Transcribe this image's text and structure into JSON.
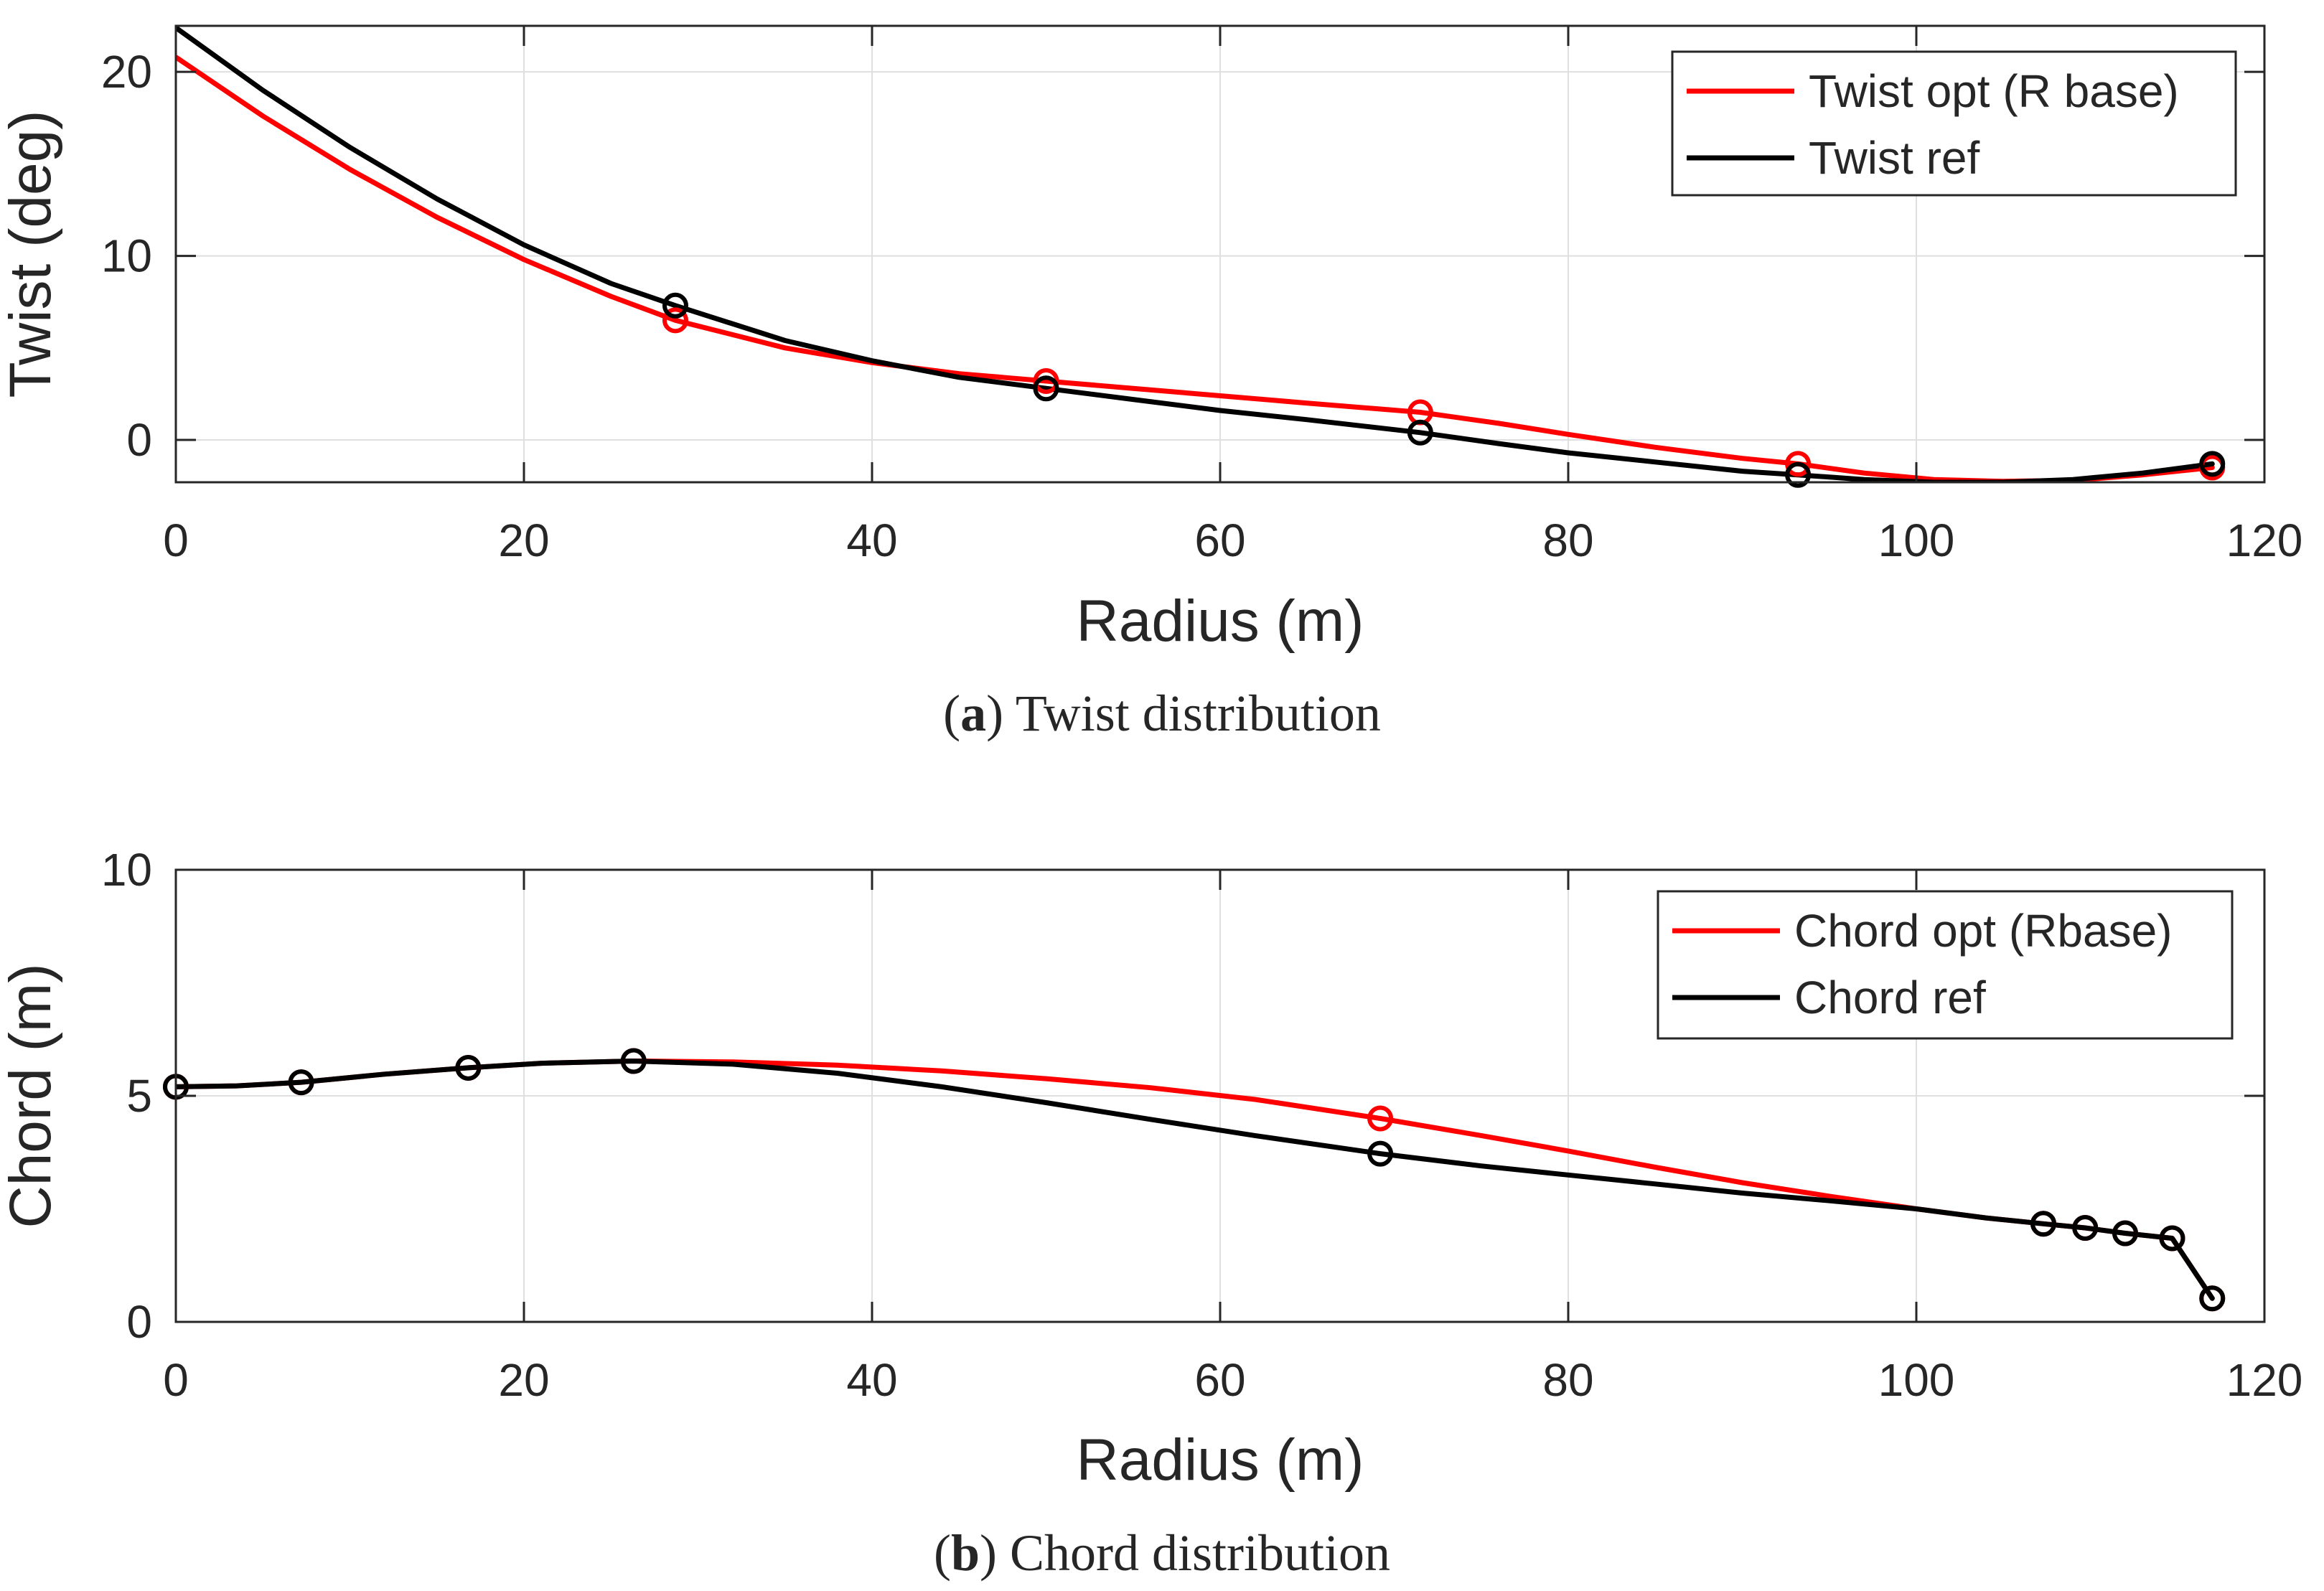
{
  "chart_data": [
    {
      "type": "line",
      "panel": "a",
      "caption_letter": "a",
      "caption_text": "Twist distribution",
      "title": "",
      "xlabel": "Radius (m)",
      "ylabel": "Twist (deg)",
      "xlim": [
        0,
        120
      ],
      "ylim": [
        -2.3,
        22.5
      ],
      "xticks": [
        0,
        20,
        40,
        60,
        80,
        100,
        120
      ],
      "yticks": [
        0,
        10,
        20
      ],
      "grid": true,
      "legend_position": "top-right",
      "series": [
        {
          "name": "Twist opt (R base)",
          "color": "#ff0000",
          "curve": [
            [
              0,
              20.8
            ],
            [
              5,
              17.6
            ],
            [
              10,
              14.7
            ],
            [
              15,
              12.1
            ],
            [
              20,
              9.8
            ],
            [
              25,
              7.8
            ],
            [
              28.7,
              6.5
            ],
            [
              35,
              5.0
            ],
            [
              40,
              4.2
            ],
            [
              45,
              3.6
            ],
            [
              50,
              3.2
            ],
            [
              55,
              2.8
            ],
            [
              60,
              2.4
            ],
            [
              65,
              2.0
            ],
            [
              71.5,
              1.5
            ],
            [
              76,
              0.9
            ],
            [
              80,
              0.3
            ],
            [
              85,
              -0.4
            ],
            [
              90,
              -1.0
            ],
            [
              93.2,
              -1.3
            ],
            [
              97,
              -1.8
            ],
            [
              101,
              -2.15
            ],
            [
              105,
              -2.25
            ],
            [
              109,
              -2.2
            ],
            [
              113,
              -1.9
            ],
            [
              117,
              -1.5
            ]
          ],
          "markers": [
            [
              28.7,
              6.5
            ],
            [
              50,
              3.2
            ],
            [
              71.5,
              1.5
            ],
            [
              93.2,
              -1.3
            ],
            [
              117,
              -1.5
            ]
          ]
        },
        {
          "name": "Twist ref",
          "color": "#000000",
          "curve": [
            [
              0,
              22.4
            ],
            [
              5,
              19.0
            ],
            [
              10,
              15.9
            ],
            [
              15,
              13.1
            ],
            [
              20,
              10.6
            ],
            [
              25,
              8.5
            ],
            [
              28.7,
              7.3
            ],
            [
              35,
              5.4
            ],
            [
              40,
              4.3
            ],
            [
              45,
              3.4
            ],
            [
              50,
              2.8
            ],
            [
              55,
              2.2
            ],
            [
              60,
              1.6
            ],
            [
              65,
              1.1
            ],
            [
              71.5,
              0.4
            ],
            [
              76,
              -0.2
            ],
            [
              80,
              -0.7
            ],
            [
              85,
              -1.2
            ],
            [
              90,
              -1.7
            ],
            [
              93.2,
              -1.9
            ],
            [
              97,
              -2.15
            ],
            [
              101,
              -2.3
            ],
            [
              105,
              -2.3
            ],
            [
              109,
              -2.15
            ],
            [
              113,
              -1.8
            ],
            [
              117,
              -1.3
            ]
          ],
          "markers": [
            [
              28.7,
              7.3
            ],
            [
              50,
              2.8
            ],
            [
              71.5,
              0.4
            ],
            [
              93.2,
              -1.9
            ],
            [
              117,
              -1.3
            ]
          ]
        }
      ]
    },
    {
      "type": "line",
      "panel": "b",
      "caption_letter": "b",
      "caption_text": "Chord distribution",
      "title": "",
      "xlabel": "Radius (m)",
      "ylabel": "Chord (m)",
      "xlim": [
        0,
        120
      ],
      "ylim": [
        0,
        10
      ],
      "xticks": [
        0,
        20,
        40,
        60,
        80,
        100,
        120
      ],
      "yticks": [
        0,
        5,
        10
      ],
      "grid": true,
      "legend_position": "top-right",
      "series": [
        {
          "name": "Chord opt (Rbase)",
          "color": "#ff0000",
          "curve": [
            [
              0,
              5.2
            ],
            [
              3.5,
              5.22
            ],
            [
              7.2,
              5.3
            ],
            [
              12,
              5.48
            ],
            [
              16.8,
              5.62
            ],
            [
              21,
              5.72
            ],
            [
              26.3,
              5.77
            ],
            [
              32,
              5.75
            ],
            [
              38,
              5.68
            ],
            [
              44,
              5.55
            ],
            [
              50,
              5.38
            ],
            [
              56,
              5.18
            ],
            [
              62,
              4.92
            ],
            [
              69.2,
              4.5
            ],
            [
              75,
              4.12
            ],
            [
              80,
              3.78
            ],
            [
              85,
              3.42
            ],
            [
              90,
              3.08
            ],
            [
              95,
              2.78
            ],
            [
              100,
              2.5
            ],
            [
              104,
              2.3
            ],
            [
              107.3,
              2.17
            ],
            [
              109.7,
              2.08
            ],
            [
              112,
              1.96
            ],
            [
              114.7,
              1.85
            ],
            [
              117,
              0.52
            ]
          ],
          "markers": [
            [
              0,
              5.2
            ],
            [
              7.2,
              5.3
            ],
            [
              16.8,
              5.62
            ],
            [
              26.3,
              5.77
            ],
            [
              69.2,
              4.5
            ],
            [
              107.3,
              2.17
            ],
            [
              109.7,
              2.08
            ],
            [
              112,
              1.96
            ],
            [
              114.7,
              1.85
            ],
            [
              117,
              0.52
            ]
          ]
        },
        {
          "name": "Chord ref",
          "color": "#000000",
          "curve": [
            [
              0,
              5.2
            ],
            [
              3.5,
              5.22
            ],
            [
              7.2,
              5.3
            ],
            [
              12,
              5.48
            ],
            [
              16.8,
              5.62
            ],
            [
              21,
              5.72
            ],
            [
              26.3,
              5.77
            ],
            [
              32,
              5.7
            ],
            [
              38,
              5.5
            ],
            [
              44,
              5.2
            ],
            [
              50,
              4.85
            ],
            [
              56,
              4.48
            ],
            [
              62,
              4.12
            ],
            [
              69.2,
              3.72
            ],
            [
              75,
              3.45
            ],
            [
              80,
              3.25
            ],
            [
              85,
              3.05
            ],
            [
              90,
              2.85
            ],
            [
              95,
              2.68
            ],
            [
              100,
              2.5
            ],
            [
              104,
              2.3
            ],
            [
              107.3,
              2.17
            ],
            [
              109.7,
              2.08
            ],
            [
              112,
              1.96
            ],
            [
              114.7,
              1.85
            ],
            [
              117,
              0.52
            ]
          ],
          "markers": [
            [
              0,
              5.2
            ],
            [
              7.2,
              5.3
            ],
            [
              16.8,
              5.62
            ],
            [
              26.3,
              5.77
            ],
            [
              69.2,
              3.72
            ],
            [
              107.3,
              2.17
            ],
            [
              109.7,
              2.08
            ],
            [
              112,
              1.96
            ],
            [
              114.7,
              1.85
            ],
            [
              117,
              0.52
            ]
          ]
        }
      ]
    }
  ]
}
